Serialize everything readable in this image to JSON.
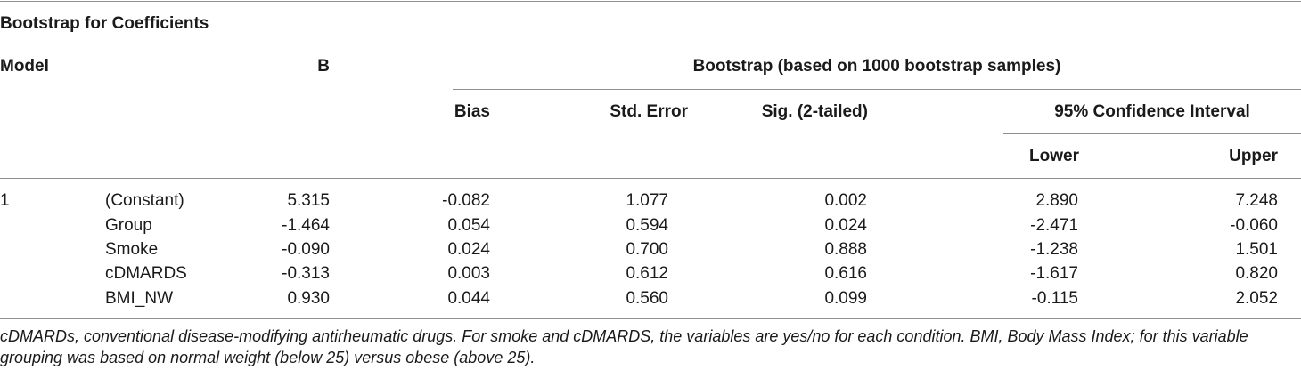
{
  "table": {
    "title": "Bootstrap for Coefficients",
    "headers": {
      "model": "Model",
      "b": "B",
      "bootstrap": "Bootstrap (based on 1000 bootstrap samples)",
      "bias": "Bias",
      "std_error": "Std. Error",
      "sig": "Sig. (2-tailed)",
      "ci": "95% Confidence Interval",
      "lower": "Lower",
      "upper": "Upper"
    },
    "model_number": "1",
    "rows": [
      {
        "name": "(Constant)",
        "b": "5.315",
        "bias": "-0.082",
        "std_error": "1.077",
        "sig": "0.002",
        "lower": "2.890",
        "upper": "7.248"
      },
      {
        "name": "Group",
        "b": "-1.464",
        "bias": "0.054",
        "std_error": "0.594",
        "sig": "0.024",
        "lower": "-2.471",
        "upper": "-0.060"
      },
      {
        "name": "Smoke",
        "b": "-0.090",
        "bias": "0.024",
        "std_error": "0.700",
        "sig": "0.888",
        "lower": "-1.238",
        "upper": "1.501"
      },
      {
        "name": "cDMARDS",
        "b": "-0.313",
        "bias": "0.003",
        "std_error": "0.612",
        "sig": "0.616",
        "lower": "-1.617",
        "upper": "0.820"
      },
      {
        "name": "BMI_NW",
        "b": "0.930",
        "bias": "0.044",
        "std_error": "0.560",
        "sig": "0.099",
        "lower": "-0.115",
        "upper": "2.052"
      }
    ],
    "caption": "cDMARDs, conventional disease-modifying antirheumatic drugs. For smoke and cDMARDS, the variables are yes/no for each condition. BMI, Body Mass Index; for this variable grouping was based on normal weight (below 25) versus obese (above 25)."
  }
}
